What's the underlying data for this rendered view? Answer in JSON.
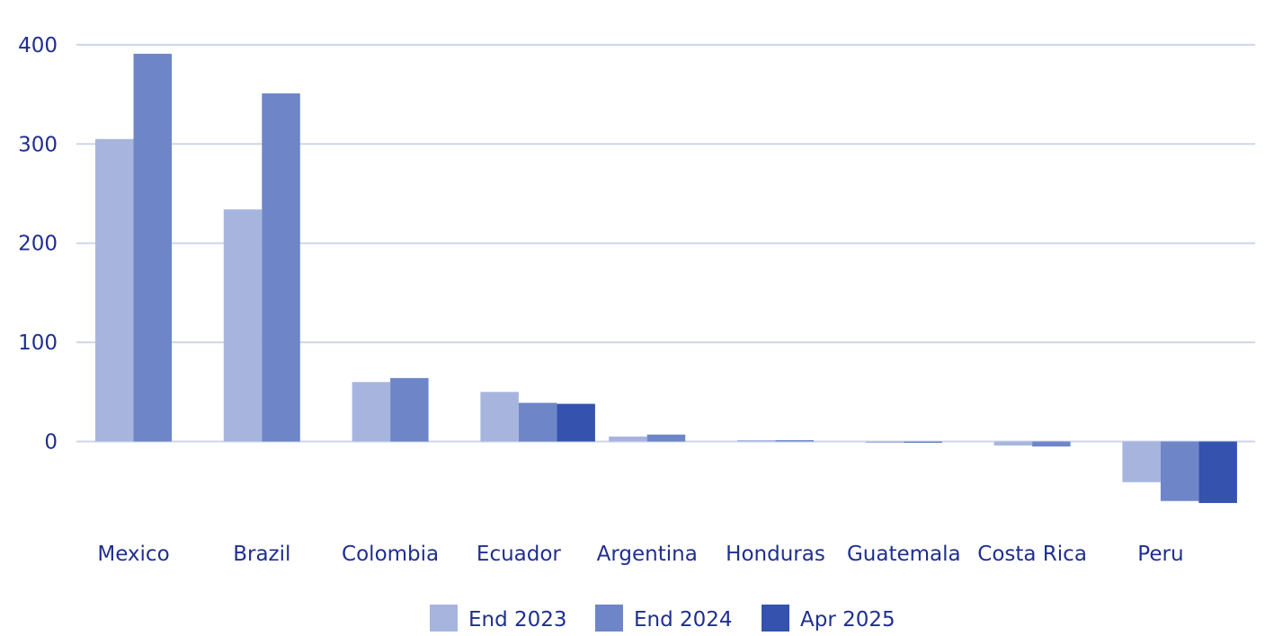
{
  "chart_data": {
    "type": "bar",
    "title": "",
    "xlabel": "",
    "ylabel": "",
    "categories": [
      "Mexico",
      "Brazil",
      "Colombia",
      "Ecuador",
      "Argentina",
      "Honduras",
      "Guatemala",
      "Costa Rica",
      "Peru"
    ],
    "series": [
      {
        "name": "End 2023",
        "color": "#a7b5de",
        "values": [
          305,
          234,
          60,
          50,
          5,
          0,
          -1,
          -4,
          -41
        ]
      },
      {
        "name": "End 2024",
        "color": "#6e86c8",
        "values": [
          391,
          351,
          64,
          39,
          7,
          0,
          -1,
          -5,
          -60
        ]
      },
      {
        "name": "Apr 2025",
        "color": "#3452ae",
        "values": [
          null,
          null,
          null,
          38,
          null,
          null,
          null,
          null,
          -62
        ]
      }
    ],
    "ylim": [
      -90,
      410
    ],
    "yticks": [
      "0",
      "100",
      "200",
      "300",
      "400"
    ],
    "grid": true,
    "legend_position": "bottom-center"
  }
}
